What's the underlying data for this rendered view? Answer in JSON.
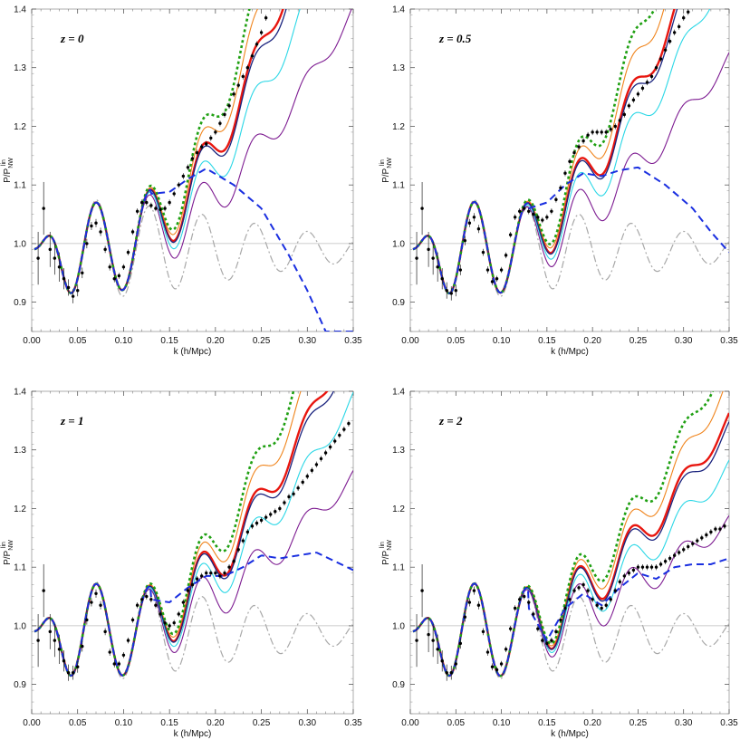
{
  "colors": {
    "red": "#e8160f",
    "orange": "#f0841c",
    "cyan": "#2ad7e6",
    "purple": "#7d1b91",
    "navy": "#1a237e",
    "green": "#1fa012",
    "blue_dashed": "#1a2fe0",
    "gray_dashdot": "#a8a8a8",
    "reference": "#bdbdbd",
    "points": "#000000"
  },
  "chart_data": [
    {
      "type": "line",
      "title": "z = 0",
      "xlabel": "k (h/Mpc)",
      "ylabel": "P/P_NW^lin",
      "xlim": [
        0,
        0.35
      ],
      "ylim": [
        0.85,
        1.4
      ],
      "xticks": [
        "0.00",
        "0.05",
        "0.10",
        "0.15",
        "0.20",
        "0.25",
        "0.30",
        "0.35"
      ],
      "yticks": [
        "0.9",
        "1.0",
        "1.1",
        "1.2",
        "1.3",
        "1.4"
      ],
      "growth": 1.0,
      "oneloop": [
        [
          0.13,
          1.085
        ],
        [
          0.15,
          1.088
        ],
        [
          0.17,
          1.11
        ],
        [
          0.19,
          1.128
        ],
        [
          0.22,
          1.1
        ],
        [
          0.25,
          1.06
        ],
        [
          0.28,
          0.98
        ],
        [
          0.3,
          0.92
        ],
        [
          0.32,
          0.85
        ]
      ],
      "series": [
        {
          "name": "data",
          "style": "points",
          "x": [
            0.007,
            0.013,
            0.02,
            0.025,
            0.03,
            0.035,
            0.04,
            0.045,
            0.05,
            0.055,
            0.06,
            0.065,
            0.07,
            0.075,
            0.08,
            0.085,
            0.09,
            0.095,
            0.1,
            0.105,
            0.11,
            0.115,
            0.12,
            0.125,
            0.13,
            0.135,
            0.14,
            0.145,
            0.15,
            0.155,
            0.16,
            0.165,
            0.17,
            0.175,
            0.18,
            0.185,
            0.19,
            0.195,
            0.2,
            0.205,
            0.21,
            0.215,
            0.22,
            0.225,
            0.23,
            0.235,
            0.24,
            0.245,
            0.25,
            0.255
          ],
          "y": [
            0.975,
            1.06,
            0.99,
            0.975,
            0.96,
            0.94,
            0.925,
            0.91,
            0.92,
            0.95,
            1.0,
            1.03,
            1.035,
            1.02,
            0.99,
            0.96,
            0.94,
            0.945,
            0.96,
            0.985,
            1.02,
            1.055,
            1.07,
            1.07,
            1.065,
            1.06,
            1.058,
            1.06,
            1.07,
            1.085,
            1.1,
            1.115,
            1.13,
            1.145,
            1.155,
            1.165,
            1.17,
            1.18,
            1.19,
            1.205,
            1.22,
            1.235,
            1.255,
            1.27,
            1.285,
            1.3,
            1.32,
            1.34,
            1.36,
            1.385
          ],
          "err": [
            0.045,
            0.045,
            0.03,
            0.028,
            0.025,
            0.018,
            0.014,
            0.012,
            0.01,
            0.009,
            0.008,
            0.007,
            0.007,
            0.007,
            0.006,
            0.006,
            0.006,
            0.005,
            0.005,
            0.005,
            0.005,
            0.005,
            0.005,
            0.005,
            0.005,
            0.005,
            0.005,
            0.005,
            0.005,
            0.005,
            0.005,
            0.005,
            0.005,
            0.005,
            0.005,
            0.005,
            0.005,
            0.005,
            0.005,
            0.005,
            0.005,
            0.005,
            0.005,
            0.005,
            0.005,
            0.005,
            0.005,
            0.005,
            0.005,
            0.005
          ]
        }
      ]
    },
    {
      "type": "line",
      "title": "z = 0.5",
      "xlabel": "k (h/Mpc)",
      "ylabel": "P/P_NW^lin",
      "xlim": [
        0,
        0.35
      ],
      "ylim": [
        0.85,
        1.4
      ],
      "xticks": [
        "0.00",
        "0.05",
        "0.10",
        "0.15",
        "0.20",
        "0.25",
        "0.30",
        "0.35"
      ],
      "yticks": [
        "0.9",
        "1.0",
        "1.1",
        "1.2",
        "1.3",
        "1.4"
      ],
      "growth": 0.77,
      "oneloop": [
        [
          0.13,
          1.06
        ],
        [
          0.15,
          1.07
        ],
        [
          0.17,
          1.1
        ],
        [
          0.19,
          1.12
        ],
        [
          0.21,
          1.115
        ],
        [
          0.23,
          1.125
        ],
        [
          0.25,
          1.13
        ],
        [
          0.28,
          1.1
        ],
        [
          0.31,
          1.06
        ],
        [
          0.33,
          1.02
        ],
        [
          0.35,
          0.985
        ]
      ],
      "series": [
        {
          "name": "data",
          "style": "points",
          "x": [
            0.007,
            0.013,
            0.02,
            0.025,
            0.03,
            0.035,
            0.04,
            0.045,
            0.05,
            0.055,
            0.06,
            0.065,
            0.07,
            0.075,
            0.08,
            0.085,
            0.09,
            0.095,
            0.1,
            0.105,
            0.11,
            0.115,
            0.12,
            0.125,
            0.13,
            0.135,
            0.14,
            0.145,
            0.15,
            0.155,
            0.16,
            0.165,
            0.17,
            0.175,
            0.18,
            0.185,
            0.19,
            0.195,
            0.2,
            0.205,
            0.21,
            0.215,
            0.22,
            0.225,
            0.23,
            0.235,
            0.24,
            0.245,
            0.25,
            0.255,
            0.26,
            0.265,
            0.27,
            0.275,
            0.28,
            0.285,
            0.29,
            0.295,
            0.3,
            0.305
          ],
          "y": [
            0.975,
            1.06,
            0.99,
            0.975,
            0.96,
            0.94,
            0.92,
            0.915,
            0.92,
            0.955,
            1.005,
            1.035,
            1.045,
            1.025,
            0.985,
            0.955,
            0.935,
            0.94,
            0.955,
            0.98,
            1.015,
            1.045,
            1.055,
            1.06,
            1.055,
            1.05,
            1.045,
            1.04,
            1.045,
            1.055,
            1.075,
            1.095,
            1.12,
            1.14,
            1.155,
            1.165,
            1.175,
            1.185,
            1.19,
            1.19,
            1.19,
            1.19,
            1.195,
            1.2,
            1.21,
            1.22,
            1.235,
            1.245,
            1.255,
            1.265,
            1.275,
            1.285,
            1.3,
            1.315,
            1.33,
            1.345,
            1.36,
            1.37,
            1.385,
            1.395
          ],
          "err": [
            0.045,
            0.045,
            0.03,
            0.028,
            0.025,
            0.018,
            0.014,
            0.012,
            0.01,
            0.009,
            0.008,
            0.007,
            0.007,
            0.007,
            0.006,
            0.006,
            0.006,
            0.005,
            0.005,
            0.005,
            0.005,
            0.005,
            0.005,
            0.005,
            0.005,
            0.005,
            0.005,
            0.005,
            0.005,
            0.005,
            0.005,
            0.005,
            0.005,
            0.005,
            0.005,
            0.005,
            0.005,
            0.005,
            0.005,
            0.005,
            0.005,
            0.005,
            0.005,
            0.005,
            0.005,
            0.005,
            0.005,
            0.005,
            0.005,
            0.005,
            0.005,
            0.005,
            0.005,
            0.005,
            0.005,
            0.005,
            0.005,
            0.005,
            0.005,
            0.005
          ]
        }
      ]
    },
    {
      "type": "line",
      "title": "z = 1",
      "xlabel": "k (h/Mpc)",
      "ylabel": "P/P_NW^lin",
      "xlim": [
        0,
        0.35
      ],
      "ylim": [
        0.85,
        1.4
      ],
      "xticks": [
        "0.00",
        "0.05",
        "0.10",
        "0.15",
        "0.20",
        "0.25",
        "0.30",
        "0.35"
      ],
      "yticks": [
        "0.9",
        "1.0",
        "1.1",
        "1.2",
        "1.3",
        "1.4"
      ],
      "growth": 0.61,
      "oneloop": [
        [
          0.13,
          1.045
        ],
        [
          0.15,
          1.04
        ],
        [
          0.17,
          1.065
        ],
        [
          0.19,
          1.085
        ],
        [
          0.21,
          1.085
        ],
        [
          0.23,
          1.1
        ],
        [
          0.25,
          1.12
        ],
        [
          0.27,
          1.115
        ],
        [
          0.29,
          1.12
        ],
        [
          0.31,
          1.125
        ],
        [
          0.33,
          1.11
        ],
        [
          0.35,
          1.095
        ]
      ],
      "series": [
        {
          "name": "data",
          "style": "points",
          "x": [
            0.007,
            0.013,
            0.02,
            0.025,
            0.03,
            0.035,
            0.04,
            0.045,
            0.05,
            0.055,
            0.06,
            0.065,
            0.07,
            0.075,
            0.08,
            0.085,
            0.09,
            0.095,
            0.1,
            0.105,
            0.11,
            0.115,
            0.12,
            0.125,
            0.13,
            0.135,
            0.14,
            0.145,
            0.15,
            0.155,
            0.16,
            0.165,
            0.17,
            0.175,
            0.18,
            0.185,
            0.19,
            0.195,
            0.2,
            0.205,
            0.21,
            0.215,
            0.22,
            0.225,
            0.23,
            0.235,
            0.24,
            0.245,
            0.25,
            0.255,
            0.26,
            0.265,
            0.27,
            0.275,
            0.28,
            0.285,
            0.29,
            0.295,
            0.3,
            0.305,
            0.31,
            0.315,
            0.32,
            0.325,
            0.33,
            0.335,
            0.34,
            0.345
          ],
          "y": [
            0.975,
            1.06,
            0.99,
            0.975,
            0.96,
            0.94,
            0.92,
            0.92,
            0.93,
            0.965,
            1.01,
            1.04,
            1.055,
            1.035,
            0.99,
            0.955,
            0.935,
            0.935,
            0.95,
            0.975,
            1.01,
            1.035,
            1.045,
            1.05,
            1.045,
            1.035,
            1.02,
            1.005,
            1.0,
            1.005,
            1.02,
            1.04,
            1.06,
            1.07,
            1.08,
            1.085,
            1.09,
            1.09,
            1.09,
            1.085,
            1.09,
            1.1,
            1.11,
            1.13,
            1.145,
            1.16,
            1.17,
            1.175,
            1.18,
            1.185,
            1.19,
            1.195,
            1.2,
            1.21,
            1.22,
            1.225,
            1.235,
            1.245,
            1.255,
            1.265,
            1.275,
            1.285,
            1.295,
            1.305,
            1.315,
            1.325,
            1.335,
            1.345
          ],
          "err": [
            0.045,
            0.045,
            0.03,
            0.028,
            0.025,
            0.018,
            0.014,
            0.012,
            0.01,
            0.009,
            0.008,
            0.007,
            0.007,
            0.007,
            0.006,
            0.006,
            0.006,
            0.005,
            0.005,
            0.005,
            0.005,
            0.005,
            0.005,
            0.005,
            0.005,
            0.005,
            0.005,
            0.005,
            0.005,
            0.005,
            0.005,
            0.005,
            0.005,
            0.005,
            0.005,
            0.005,
            0.005,
            0.005,
            0.005,
            0.005,
            0.005,
            0.005,
            0.005,
            0.005,
            0.005,
            0.005,
            0.005,
            0.005,
            0.005,
            0.005,
            0.005,
            0.005,
            0.005,
            0.005,
            0.005,
            0.005,
            0.005,
            0.005,
            0.005,
            0.005,
            0.005,
            0.005,
            0.005,
            0.005,
            0.005,
            0.005,
            0.005,
            0.005
          ]
        }
      ]
    },
    {
      "type": "line",
      "title": "z = 2",
      "xlabel": "k (h/Mpc)",
      "ylabel": "P/P_NW^lin",
      "xlim": [
        0,
        0.35
      ],
      "ylim": [
        0.85,
        1.4
      ],
      "xticks": [
        "0.00",
        "0.05",
        "0.10",
        "0.15",
        "0.20",
        "0.25",
        "0.30",
        "0.35"
      ],
      "yticks": [
        "0.9",
        "1.0",
        "1.1",
        "1.2",
        "1.3",
        "1.4"
      ],
      "growth": 0.42,
      "oneloop": [
        [
          0.13,
          1.03
        ],
        [
          0.15,
          0.975
        ],
        [
          0.17,
          1.03
        ],
        [
          0.19,
          1.055
        ],
        [
          0.21,
          1.035
        ],
        [
          0.23,
          1.065
        ],
        [
          0.25,
          1.09
        ],
        [
          0.27,
          1.08
        ],
        [
          0.29,
          1.1
        ],
        [
          0.31,
          1.105
        ],
        [
          0.33,
          1.105
        ],
        [
          0.35,
          1.115
        ]
      ],
      "series": [
        {
          "name": "data",
          "style": "points",
          "x": [
            0.007,
            0.013,
            0.02,
            0.025,
            0.03,
            0.035,
            0.04,
            0.045,
            0.05,
            0.055,
            0.06,
            0.065,
            0.07,
            0.075,
            0.08,
            0.085,
            0.09,
            0.095,
            0.1,
            0.105,
            0.11,
            0.115,
            0.12,
            0.125,
            0.13,
            0.135,
            0.14,
            0.145,
            0.15,
            0.155,
            0.16,
            0.165,
            0.17,
            0.175,
            0.18,
            0.185,
            0.19,
            0.195,
            0.2,
            0.205,
            0.21,
            0.215,
            0.22,
            0.225,
            0.23,
            0.235,
            0.24,
            0.245,
            0.25,
            0.255,
            0.26,
            0.265,
            0.27,
            0.275,
            0.28,
            0.285,
            0.29,
            0.295,
            0.3,
            0.305,
            0.31,
            0.315,
            0.32,
            0.325,
            0.33,
            0.335,
            0.34,
            0.345
          ],
          "y": [
            0.975,
            1.06,
            0.985,
            0.975,
            0.96,
            0.94,
            0.92,
            0.92,
            0.935,
            0.97,
            1.015,
            1.04,
            1.06,
            1.035,
            0.99,
            0.955,
            0.93,
            0.925,
            0.935,
            0.96,
            0.995,
            1.03,
            1.045,
            1.05,
            1.04,
            1.02,
            0.995,
            0.975,
            0.97,
            0.975,
            0.99,
            1.01,
            1.03,
            1.045,
            1.06,
            1.065,
            1.07,
            1.06,
            1.045,
            1.035,
            1.03,
            1.035,
            1.045,
            1.06,
            1.075,
            1.085,
            1.09,
            1.095,
            1.1,
            1.1,
            1.1,
            1.1,
            1.1,
            1.105,
            1.11,
            1.115,
            1.12,
            1.125,
            1.13,
            1.135,
            1.14,
            1.145,
            1.15,
            1.155,
            1.16,
            1.165,
            1.165,
            1.17
          ],
          "err": [
            0.045,
            0.045,
            0.03,
            0.028,
            0.025,
            0.018,
            0.014,
            0.012,
            0.01,
            0.009,
            0.008,
            0.007,
            0.007,
            0.007,
            0.006,
            0.006,
            0.006,
            0.005,
            0.005,
            0.005,
            0.005,
            0.005,
            0.005,
            0.005,
            0.005,
            0.005,
            0.005,
            0.005,
            0.005,
            0.005,
            0.005,
            0.005,
            0.005,
            0.005,
            0.005,
            0.005,
            0.005,
            0.005,
            0.005,
            0.005,
            0.005,
            0.005,
            0.005,
            0.005,
            0.005,
            0.005,
            0.005,
            0.005,
            0.005,
            0.005,
            0.005,
            0.005,
            0.005,
            0.005,
            0.005,
            0.005,
            0.005,
            0.005,
            0.005,
            0.005,
            0.005,
            0.005,
            0.005,
            0.005,
            0.005,
            0.005,
            0.005,
            0.005
          ]
        }
      ]
    }
  ]
}
